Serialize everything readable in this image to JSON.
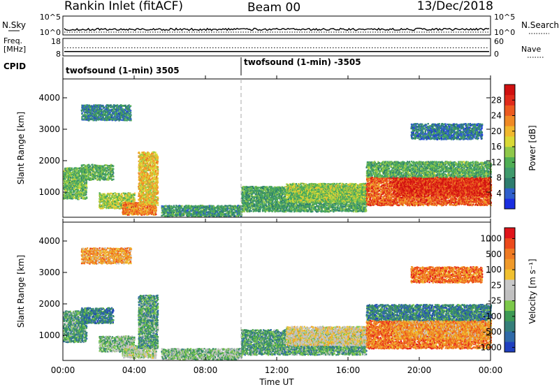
{
  "header": {
    "title": "Rankin Inlet (fitACF)",
    "beam": "Beam 00",
    "date": "13/Dec/2018"
  },
  "noise_panel": {
    "left_label": "N.Sky",
    "right_label": "N.Search",
    "left_ticks": [
      "10^5",
      "10^0"
    ],
    "right_ticks": [
      "10^5",
      "10^0"
    ]
  },
  "freq_panel": {
    "left_label_1": "Freq.",
    "left_label_2": "[MHz]",
    "right_label": "Nave",
    "left_ticks": [
      "18",
      "8"
    ],
    "right_ticks": [
      "60",
      "0"
    ],
    "freq_value": 10.5,
    "nave_value": 28
  },
  "cpid": {
    "label": "CPID",
    "segments": [
      {
        "text": "twofsound (1-min) 3505",
        "start_hour": 0
      },
      {
        "text": "twofsound (1-min) -3505",
        "start_hour": 10
      }
    ]
  },
  "time_axis": {
    "label": "Time UT",
    "ticks": [
      "00:00",
      "04:00",
      "08:00",
      "12:00",
      "16:00",
      "20:00",
      "00:00"
    ],
    "tick_hours": [
      0,
      4,
      8,
      12,
      16,
      20,
      24
    ],
    "range_hours": [
      0,
      24
    ],
    "mode_change_hour": 10
  },
  "chart_data": [
    {
      "type": "heatmap",
      "name": "power",
      "ylabel": "Slant Range [km]",
      "yticks": [
        "1000",
        "2000",
        "3000",
        "4000"
      ],
      "ytick_values": [
        1000,
        2000,
        3000,
        4000
      ],
      "ylim": [
        200,
        4600
      ],
      "xlim_hours": [
        0,
        24
      ],
      "colorbar": {
        "label": "Power [dB]",
        "ticks": [
          "4",
          "8",
          "12",
          "16",
          "20",
          "24",
          "28"
        ],
        "tick_values": [
          4,
          8,
          12,
          16,
          20,
          24,
          28
        ],
        "range": [
          0,
          32
        ],
        "colors": [
          "#1a2ee0",
          "#2f5fcc",
          "#2e7d6e",
          "#3f9a6c",
          "#4fae55",
          "#8fc84a",
          "#d9d936",
          "#f0b82e",
          "#f08a25",
          "#ec5a1f",
          "#e02a1a",
          "#d01010"
        ]
      },
      "echo_regions": [
        {
          "t": [
            0.0,
            1.3
          ],
          "r": [
            800,
            1800
          ],
          "level": 11
        },
        {
          "t": [
            1.0,
            2.8
          ],
          "r": [
            1400,
            1900
          ],
          "level": 10
        },
        {
          "t": [
            2.0,
            4.0
          ],
          "r": [
            500,
            1000
          ],
          "level": 14
        },
        {
          "t": [
            3.3,
            5.2
          ],
          "r": [
            300,
            700
          ],
          "level": 22
        },
        {
          "t": [
            4.2,
            5.3
          ],
          "r": [
            600,
            2300
          ],
          "level": 18
        },
        {
          "t": [
            1.0,
            3.8
          ],
          "r": [
            3300,
            3800
          ],
          "level": 6
        },
        {
          "t": [
            5.5,
            10.0
          ],
          "r": [
            250,
            600
          ],
          "level": 8
        },
        {
          "t": [
            10.0,
            17.0
          ],
          "r": [
            400,
            1200
          ],
          "level": 9
        },
        {
          "t": [
            12.5,
            17.0
          ],
          "r": [
            700,
            1300
          ],
          "level": 13
        },
        {
          "t": [
            17.0,
            24.0
          ],
          "r": [
            600,
            1500
          ],
          "level": 24
        },
        {
          "t": [
            18.5,
            24.0
          ],
          "r": [
            900,
            1500
          ],
          "level": 27
        },
        {
          "t": [
            17.0,
            24.0
          ],
          "r": [
            1500,
            2000
          ],
          "level": 10
        },
        {
          "t": [
            19.5,
            23.5
          ],
          "r": [
            2700,
            3200
          ],
          "level": 5
        }
      ]
    },
    {
      "type": "heatmap",
      "name": "velocity",
      "ylabel": "Slant Range [km]",
      "yticks": [
        "1000",
        "2000",
        "3000",
        "4000"
      ],
      "ytick_values": [
        1000,
        2000,
        3000,
        4000
      ],
      "ylim": [
        200,
        4600
      ],
      "xlim_hours": [
        0,
        24
      ],
      "colorbar": {
        "label": "Velocity [m s⁻¹]",
        "ticks": [
          "1000",
          "500",
          "100",
          "25",
          "-25",
          "-100",
          "-500",
          "-1000"
        ],
        "colors": [
          "#1f3fbf",
          "#2f6aa8",
          "#357f7a",
          "#3d9a55",
          "#7cc84a",
          "#c0c0c0",
          "#c8c8c8",
          "#f0c030",
          "#f09a2a",
          "#ef7a22",
          "#ec4a1c",
          "#e0141a"
        ]
      },
      "echo_regions": [
        {
          "t": [
            0.0,
            1.3
          ],
          "r": [
            800,
            1800
          ],
          "level": 3
        },
        {
          "t": [
            1.0,
            2.8
          ],
          "r": [
            1400,
            1900
          ],
          "level": 2
        },
        {
          "t": [
            2.0,
            4.0
          ],
          "r": [
            500,
            1000
          ],
          "level": 4
        },
        {
          "t": [
            3.3,
            5.2
          ],
          "r": [
            300,
            700
          ],
          "level": 5
        },
        {
          "t": [
            4.2,
            5.3
          ],
          "r": [
            600,
            2300
          ],
          "level": 3
        },
        {
          "t": [
            1.0,
            3.8
          ],
          "r": [
            3300,
            3800
          ],
          "level": 8
        },
        {
          "t": [
            5.5,
            10.0
          ],
          "r": [
            250,
            600
          ],
          "level": 4
        },
        {
          "t": [
            10.0,
            17.0
          ],
          "r": [
            400,
            1200
          ],
          "level": 3
        },
        {
          "t": [
            12.5,
            17.0
          ],
          "r": [
            700,
            1300
          ],
          "level": 6
        },
        {
          "t": [
            17.0,
            24.0
          ],
          "r": [
            600,
            1500
          ],
          "level": 9
        },
        {
          "t": [
            18.5,
            24.0
          ],
          "r": [
            900,
            1500
          ],
          "level": 8
        },
        {
          "t": [
            17.0,
            24.0
          ],
          "r": [
            1500,
            2000
          ],
          "level": 2
        },
        {
          "t": [
            19.5,
            23.5
          ],
          "r": [
            2700,
            3200
          ],
          "level": 9
        }
      ]
    }
  ]
}
